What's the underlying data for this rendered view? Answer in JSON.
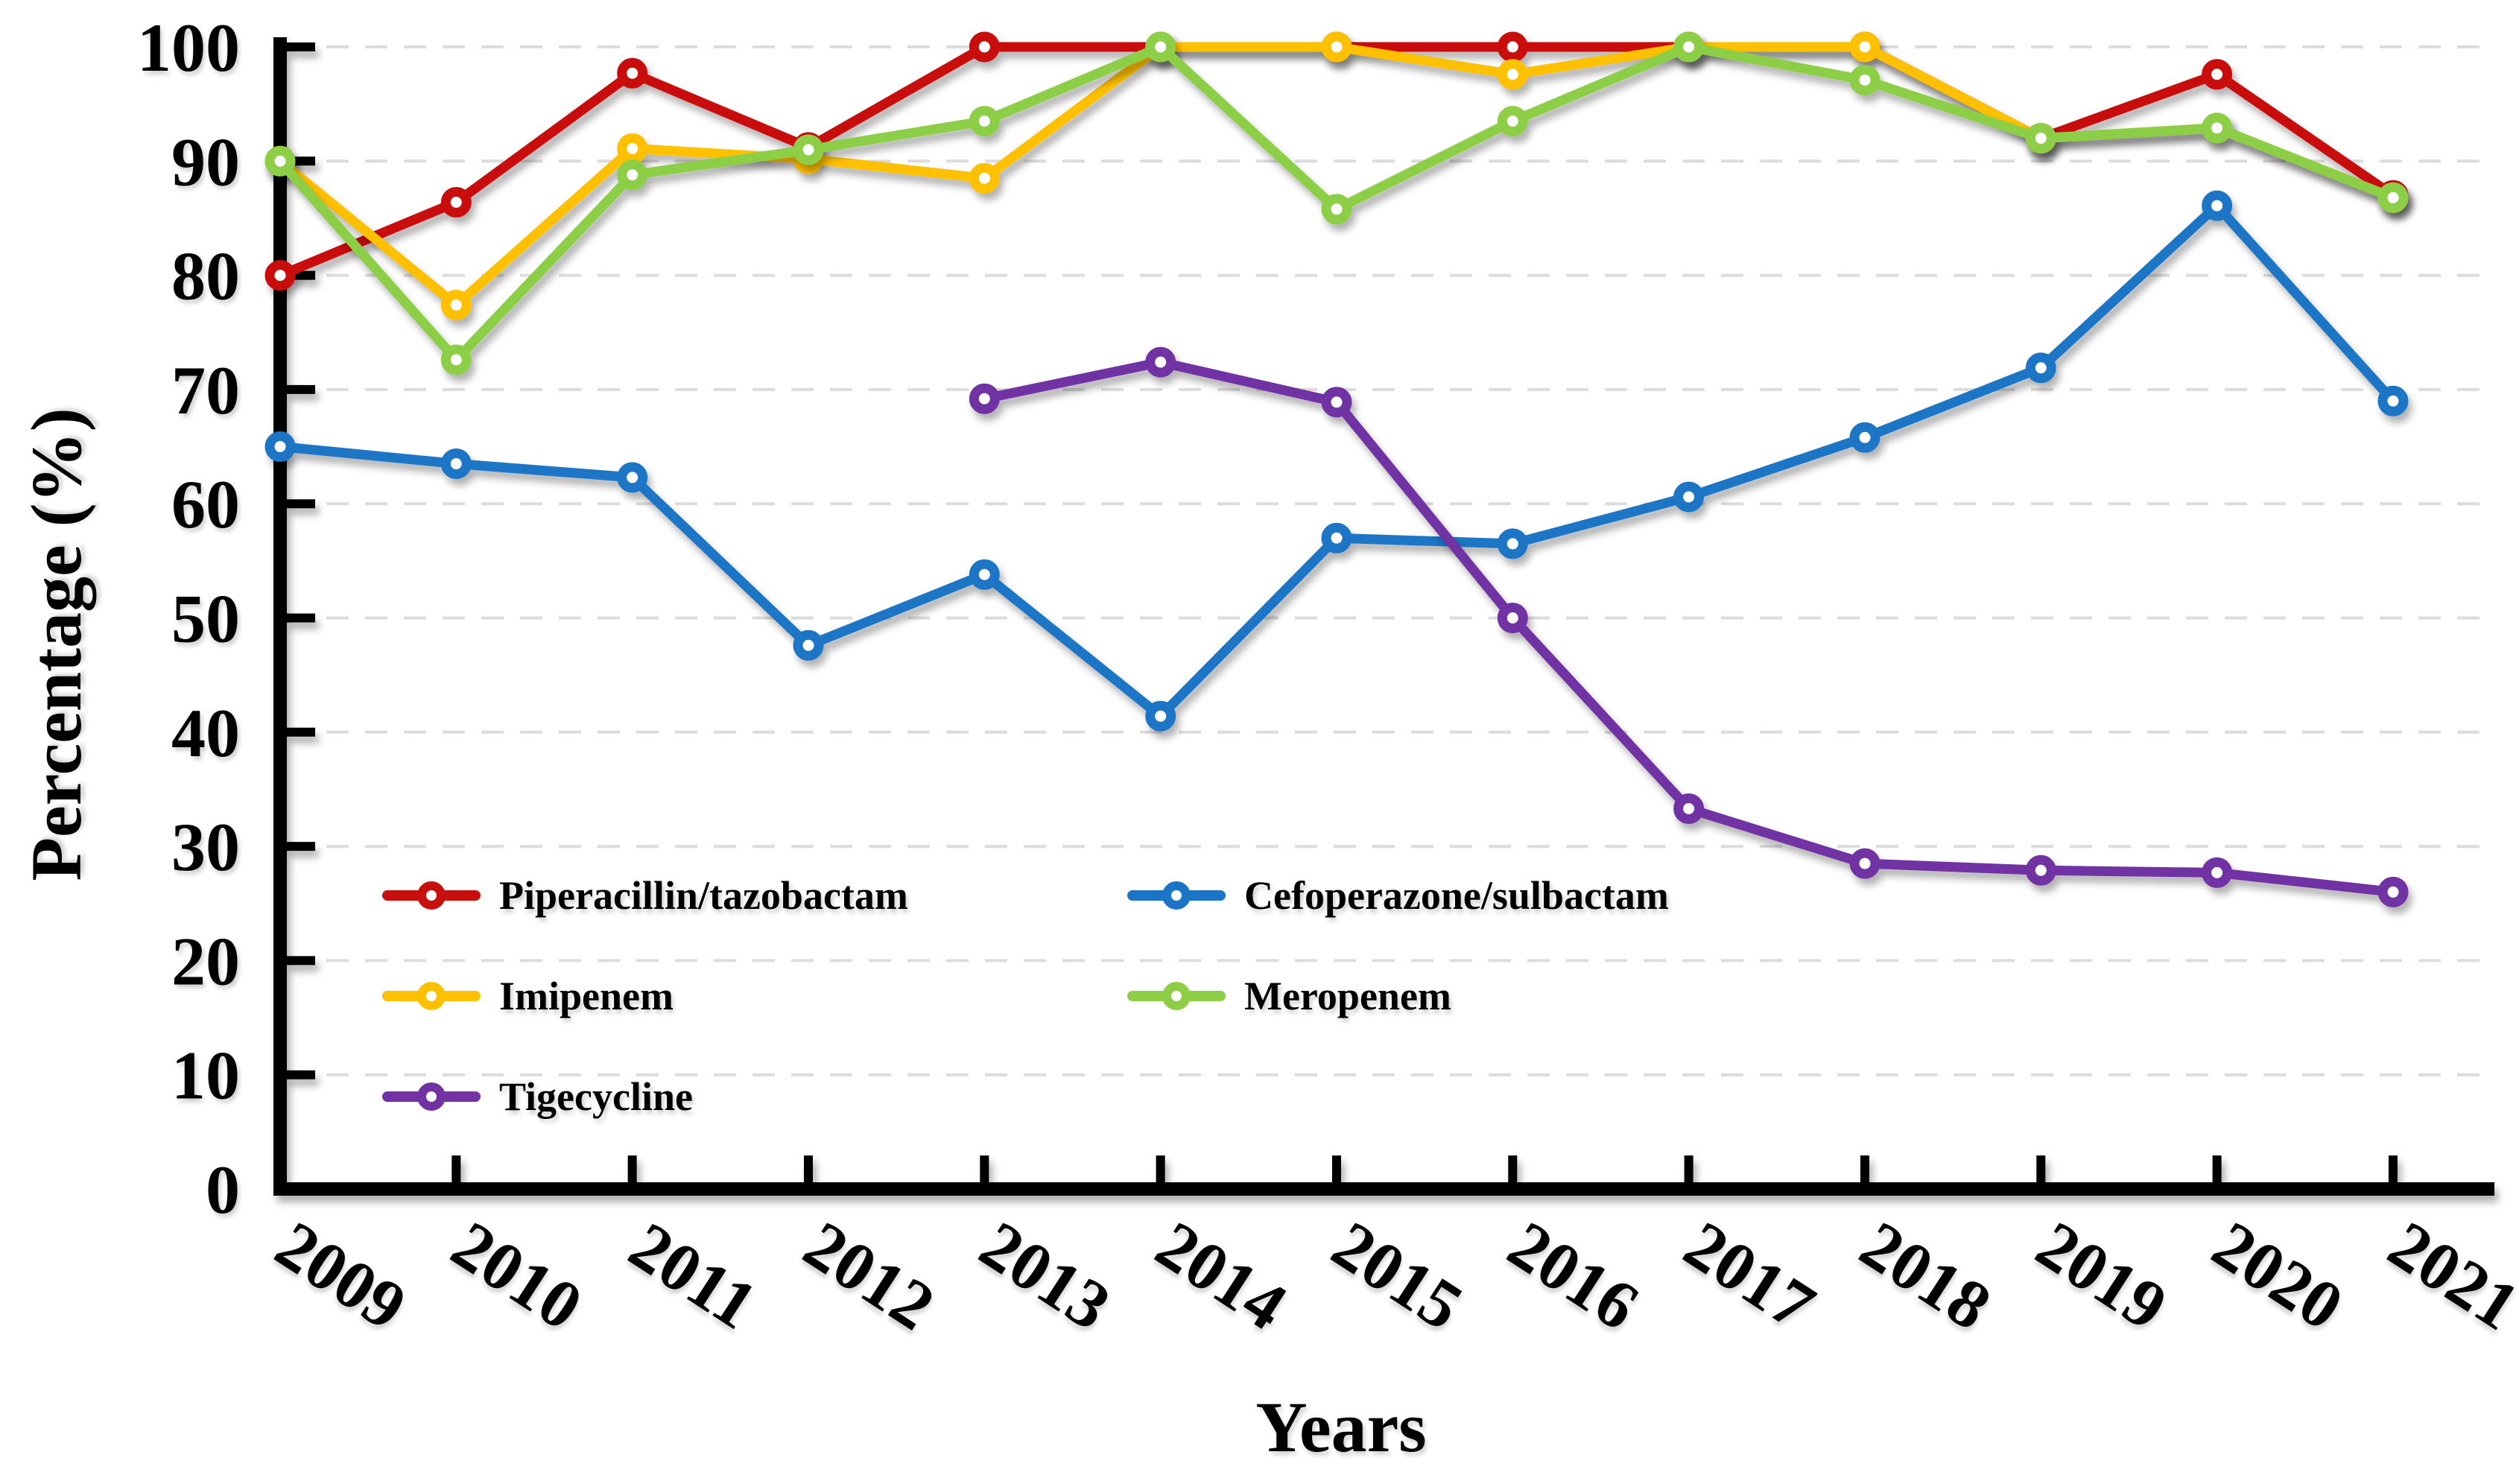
{
  "chart_data": {
    "type": "line",
    "title": "",
    "xlabel": "Years",
    "ylabel": "Percentage (%)",
    "x": [
      2009,
      2010,
      2011,
      2012,
      2013,
      2014,
      2015,
      2016,
      2017,
      2018,
      2019,
      2020,
      2021
    ],
    "ylim": [
      0,
      100
    ],
    "yticks": [
      0,
      10,
      20,
      30,
      40,
      50,
      60,
      70,
      80,
      90,
      100
    ],
    "grid": "horizontal dashed light-gray at every 10",
    "legend_position": "inside plot, lower-left, two columns, three rows",
    "marker_style": "open circle on line",
    "axis_color": "#000000",
    "gridline_color": "#dcdcdc",
    "series": [
      {
        "name": "Piperacillin/tazobactam",
        "color": "#C90E0E",
        "values": [
          80.0,
          86.4,
          97.7,
          91.2,
          100.0,
          100.0,
          100.0,
          100.0,
          100.0,
          100.0,
          92.0,
          97.6,
          87.0
        ]
      },
      {
        "name": "Cefoperazone/sulbactam",
        "color": "#1B74C5",
        "values": [
          65.0,
          63.5,
          62.3,
          47.6,
          53.8,
          41.4,
          57.0,
          56.5,
          60.6,
          65.8,
          71.9,
          86.1,
          69.0
        ]
      },
      {
        "name": "Imipenem",
        "color": "#FFC000",
        "values": [
          90.0,
          77.4,
          91.1,
          90.2,
          88.5,
          100.0,
          100.0,
          97.6,
          100.0,
          100.0,
          92.0,
          92.9,
          86.8
        ]
      },
      {
        "name": "Meropenem",
        "color": "#8DCE46",
        "values": [
          90.0,
          72.6,
          88.8,
          91.0,
          93.5,
          100.0,
          85.8,
          93.5,
          100.0,
          97.1,
          92.0,
          92.9,
          86.8
        ]
      },
      {
        "name": "Tigecycline",
        "color": "#7133A3",
        "values": [
          null,
          null,
          null,
          null,
          69.2,
          72.4,
          68.9,
          50.0,
          33.3,
          28.5,
          27.9,
          27.7,
          26.0
        ]
      }
    ]
  }
}
